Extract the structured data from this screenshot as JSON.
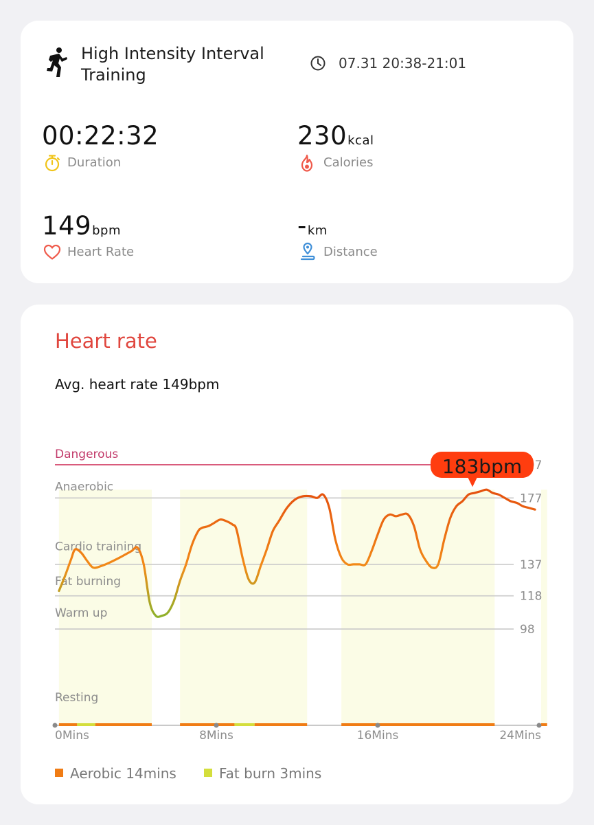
{
  "workout": {
    "title_line1": "High Intensity Interval",
    "title_line2": "Training",
    "time_range": "07.31 20:38-21:01",
    "activity_icon": "running-figure-icon",
    "clock_icon": "clock-icon"
  },
  "stats": {
    "duration": {
      "value": "00:22:32",
      "label": "Duration",
      "icon": "stopwatch-icon"
    },
    "calories": {
      "value": "230",
      "unit": "kcal",
      "label": "Calories",
      "icon": "flame-icon"
    },
    "heart_rate": {
      "value": "149",
      "unit": "bpm",
      "label": "Heart Rate",
      "icon": "heart-icon"
    },
    "distance": {
      "value": "-",
      "unit": "km",
      "label": "Distance",
      "icon": "location-pin-icon"
    }
  },
  "heart_rate_card": {
    "title": "Heart rate",
    "avg_text": "Avg. heart rate 149bpm",
    "tooltip": "183bpm"
  },
  "colors": {
    "title_red": "#e0463e",
    "dangerous_line": "#d95b7c",
    "aerobic": "#f07c14",
    "fat_burn": "#d4de3c",
    "zone_fill": "#fbfce6",
    "tooltip": "#ff3d0f"
  },
  "chart_data": {
    "type": "line",
    "x_unit": "Mins",
    "xlim": [
      0,
      24
    ],
    "ylim": [
      40,
      197
    ],
    "x_ticks": [
      "0Mins",
      "8Mins",
      "16Mins",
      "24Mins"
    ],
    "y_ticks": [
      {
        "label": "197",
        "value": 197
      },
      {
        "label": "177",
        "value": 177
      },
      {
        "label": "137",
        "value": 137
      },
      {
        "label": "118",
        "value": 118
      },
      {
        "label": "98",
        "value": 98
      }
    ],
    "zones": [
      {
        "name": "Dangerous",
        "value": 197
      },
      {
        "name": "Anaerobic",
        "value": 177
      },
      {
        "name": "Cardio training",
        "value": 148
      },
      {
        "name": "Fat burning",
        "value": 127
      },
      {
        "name": "Warm up",
        "value": 108
      },
      {
        "name": "Resting",
        "value": 57
      }
    ],
    "series": [
      {
        "x": [
          0.2,
          0.5,
          0.8,
          1.0,
          1.3,
          1.6,
          1.9,
          2.3,
          2.7,
          3.2,
          3.5,
          3.8,
          4.1,
          4.4,
          4.7,
          5.0,
          5.3,
          5.6,
          5.9,
          6.2,
          6.5,
          6.8,
          7.1,
          7.3,
          7.6,
          7.9,
          8.2,
          8.5,
          8.8,
          9.0,
          9.3,
          9.6,
          9.9,
          10.2,
          10.5,
          10.8,
          11.1,
          11.5,
          11.9,
          12.3,
          12.7,
          13.0,
          13.3,
          13.6,
          13.9,
          14.2,
          14.5,
          14.8,
          15.1,
          15.4,
          15.7,
          16.0,
          16.3,
          16.6,
          16.9,
          17.2,
          17.5,
          17.8,
          18.1,
          18.4,
          18.7,
          19.0,
          19.3,
          19.6,
          19.9,
          20.2,
          20.5,
          20.8,
          21.1,
          21.4,
          21.7,
          22.0,
          22.3,
          22.6,
          22.9,
          23.2,
          23.5,
          23.8
        ],
        "y": [
          121,
          130,
          140,
          146,
          144,
          139,
          135,
          136,
          138,
          141,
          143,
          145,
          147,
          137,
          114,
          106,
          106,
          108,
          115,
          127,
          137,
          149,
          157,
          159,
          160,
          162,
          164,
          163,
          161,
          158,
          141,
          128,
          126,
          136,
          146,
          157,
          163,
          171,
          176,
          178,
          178,
          177,
          179,
          171,
          152,
          141,
          137,
          137,
          137,
          137,
          145,
          155,
          164,
          167,
          166,
          167,
          167,
          160,
          146,
          139,
          135,
          137,
          152,
          165,
          172,
          175,
          179,
          180,
          181,
          182,
          180,
          179,
          177,
          175,
          174,
          172,
          171,
          170
        ],
        "colors": [
          "#7cb82f",
          "#f28a17",
          "#e5520e"
        ]
      }
    ],
    "activity_bands": [
      {
        "x": [
          0.2,
          4.8
        ]
      },
      {
        "x": [
          6.2,
          12.5
        ]
      },
      {
        "x": [
          14.2,
          21.8
        ]
      },
      {
        "x": [
          24.1,
          24.4
        ]
      }
    ],
    "legend": [
      {
        "name": "Aerobic 14mins",
        "color": "#f07c14"
      },
      {
        "name": "Fat burn 3mins",
        "color": "#d4de3c"
      }
    ]
  }
}
